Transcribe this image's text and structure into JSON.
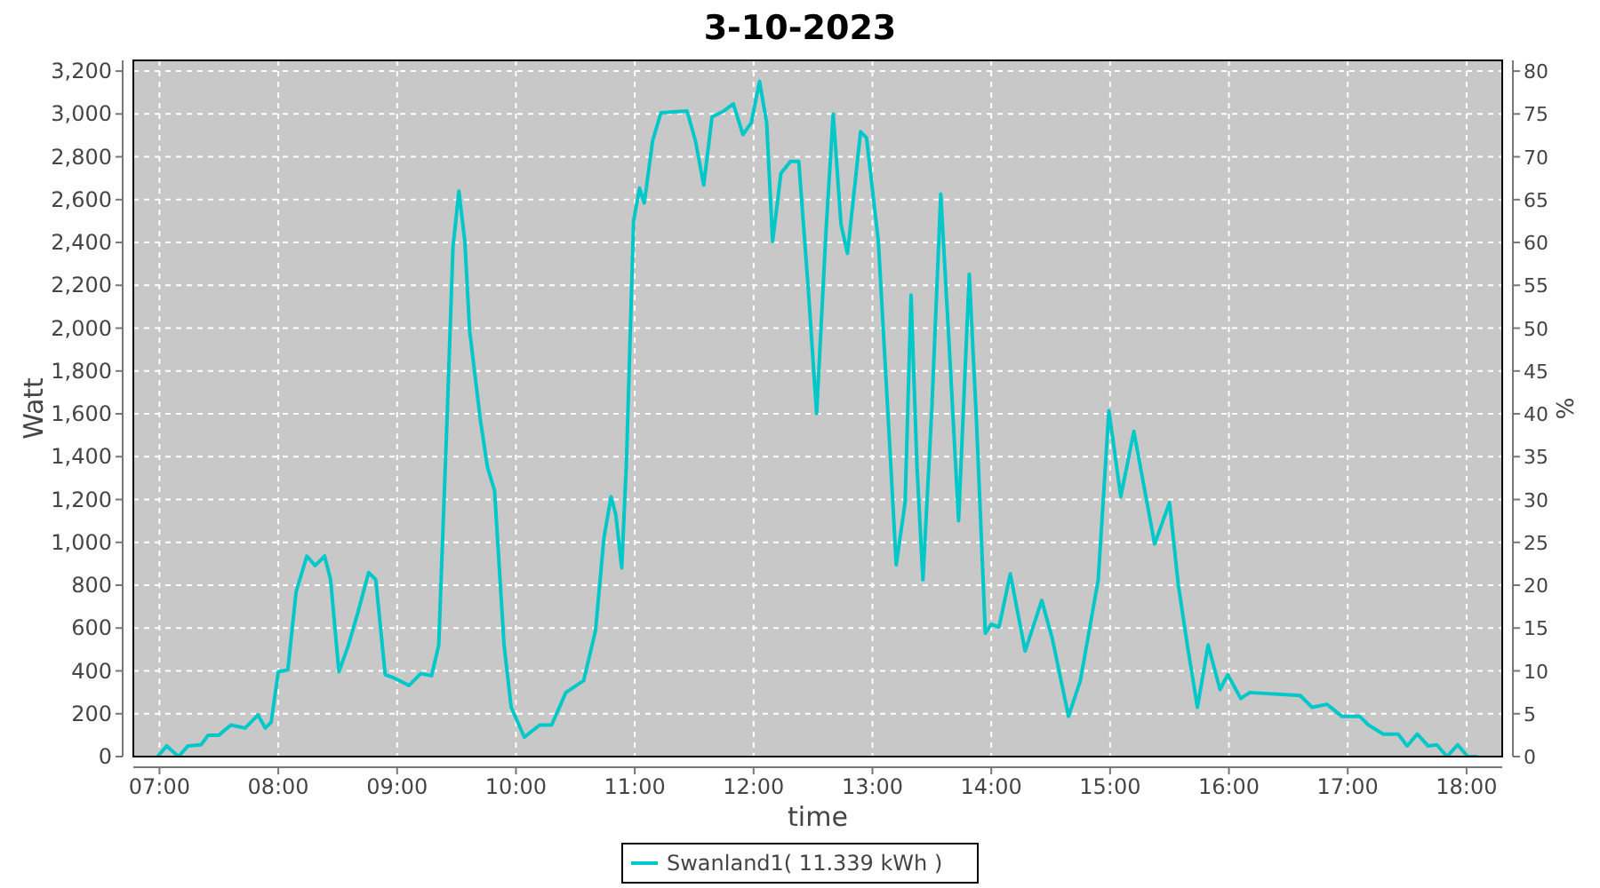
{
  "chart_data": {
    "type": "line",
    "title": "3-10-2023",
    "xlabel": "time",
    "ylabel": "Watt",
    "y2label": "%",
    "xlim": [
      6.78,
      18.3
    ],
    "xticks": [
      {
        "value": 7,
        "label": "07:00"
      },
      {
        "value": 8,
        "label": "08:00"
      },
      {
        "value": 9,
        "label": "09:00"
      },
      {
        "value": 10,
        "label": "10:00"
      },
      {
        "value": 11,
        "label": "11:00"
      },
      {
        "value": 12,
        "label": "12:00"
      },
      {
        "value": 13,
        "label": "13:00"
      },
      {
        "value": 14,
        "label": "14:00"
      },
      {
        "value": 15,
        "label": "15:00"
      },
      {
        "value": 16,
        "label": "16:00"
      },
      {
        "value": 17,
        "label": "17:00"
      },
      {
        "value": 18,
        "label": "18:00"
      }
    ],
    "ylim": [
      0,
      3250
    ],
    "yticks": [
      0,
      200,
      400,
      600,
      800,
      {
        "value": 1000,
        "label": "1,000"
      },
      {
        "value": 1200,
        "label": "1,200"
      },
      {
        "value": 1400,
        "label": "1,400"
      },
      {
        "value": 1600,
        "label": "1,600"
      },
      {
        "value": 1800,
        "label": "1,800"
      },
      {
        "value": 2000,
        "label": "2,000"
      },
      {
        "value": 2200,
        "label": "2,200"
      },
      {
        "value": 2400,
        "label": "2,400"
      },
      {
        "value": 2600,
        "label": "2,600"
      },
      {
        "value": 2800,
        "label": "2,800"
      },
      {
        "value": 3000,
        "label": "3,000"
      },
      {
        "value": 3200,
        "label": "3,200"
      }
    ],
    "y2lim": [
      0,
      81.25
    ],
    "y2ticks": [
      0,
      5,
      10,
      15,
      20,
      25,
      30,
      35,
      40,
      45,
      50,
      55,
      60,
      65,
      70,
      75,
      80
    ],
    "grid": true,
    "legend": "bottom",
    "marker": "none",
    "line_style": "solid",
    "series": [
      {
        "name": "Swanland1( 11.339 kWh )",
        "color": "#00c8c8",
        "x": [
          6.985,
          7.06,
          7.16,
          7.24,
          7.35,
          7.41,
          7.5,
          7.6,
          7.72,
          7.83,
          7.89,
          7.94,
          8.0,
          8.08,
          8.15,
          8.24,
          8.31,
          8.39,
          8.44,
          8.51,
          8.59,
          8.67,
          8.76,
          8.82,
          8.9,
          8.97,
          9.1,
          9.2,
          9.29,
          9.35,
          9.42,
          9.47,
          9.52,
          9.57,
          9.61,
          9.7,
          9.76,
          9.82,
          9.9,
          9.96,
          10.07,
          10.2,
          10.3,
          10.42,
          10.57,
          10.67,
          10.74,
          10.8,
          10.84,
          10.89,
          10.93,
          10.99,
          11.04,
          11.08,
          11.15,
          11.22,
          11.44,
          11.51,
          11.58,
          11.65,
          11.75,
          11.83,
          11.91,
          11.98,
          12.05,
          12.11,
          12.16,
          12.23,
          12.31,
          12.38,
          12.46,
          12.53,
          12.61,
          12.67,
          12.735,
          12.79,
          12.9,
          12.95,
          13.05,
          13.15,
          13.2,
          13.275,
          13.325,
          13.375,
          13.425,
          13.5,
          13.575,
          13.65,
          13.725,
          13.815,
          13.875,
          13.95,
          14.0,
          14.065,
          14.16,
          14.285,
          14.425,
          14.515,
          14.65,
          14.75,
          14.9,
          14.99,
          15.09,
          15.2,
          15.375,
          15.5,
          15.575,
          15.65,
          15.735,
          15.825,
          15.925,
          15.99,
          16.1,
          16.175,
          16.6,
          16.7,
          16.825,
          16.95,
          17.1,
          17.175,
          17.3,
          17.425,
          17.5,
          17.585,
          17.675,
          17.75,
          17.835,
          17.925,
          18.01,
          18.085
        ],
        "values": [
          0,
          50,
          0,
          50,
          55,
          100,
          100,
          147,
          133,
          194,
          133,
          160,
          396,
          404,
          770,
          936,
          892,
          936,
          826,
          396,
          520,
          673,
          859,
          826,
          382,
          368,
          332,
          388,
          377,
          520,
          1573,
          2377,
          2640,
          2404,
          1989,
          1573,
          1352,
          1241,
          520,
          230,
          91,
          147,
          147,
          299,
          355,
          590,
          1019,
          1213,
          1130,
          881,
          1379,
          2501,
          2654,
          2584,
          2875,
          3005,
          3014,
          2875,
          2668,
          2986,
          3014,
          3047,
          2903,
          2958,
          3152,
          2958,
          2404,
          2723,
          2778,
          2778,
          2183,
          1601,
          2460,
          3000,
          2487,
          2349,
          2917,
          2889,
          2404,
          1407,
          895,
          1186,
          2155,
          1352,
          825,
          1628,
          2626,
          1878,
          1102,
          2252,
          1573,
          576,
          618,
          604,
          853,
          493,
          729,
          548,
          188,
          355,
          825,
          1615,
          1213,
          1518,
          992,
          1186,
          798,
          521,
          230,
          521,
          313,
          382,
          271,
          299,
          285,
          230,
          244,
          188,
          188,
          147,
          105,
          105,
          50,
          105,
          50,
          55,
          0,
          55,
          0,
          0
        ]
      }
    ]
  }
}
